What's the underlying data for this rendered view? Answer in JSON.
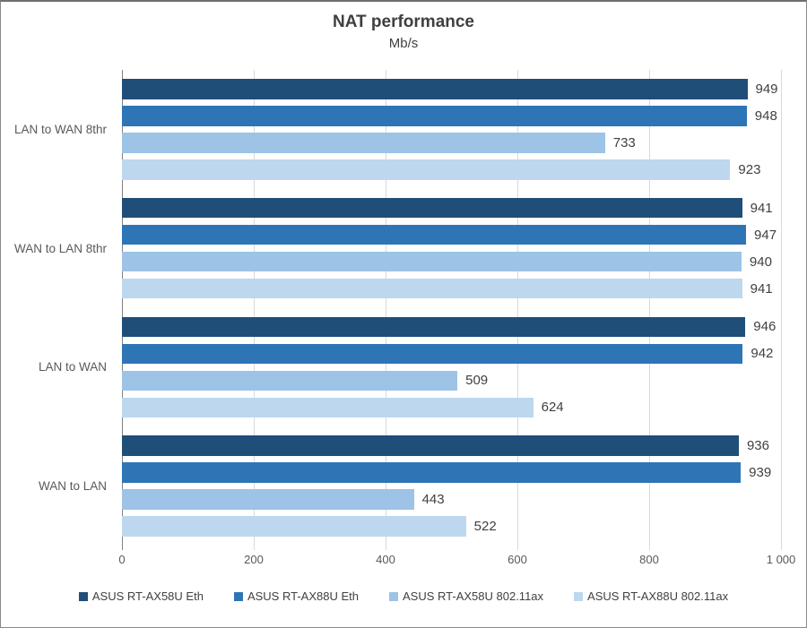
{
  "chart_data": {
    "type": "bar",
    "orientation": "horizontal",
    "title": "NAT performance",
    "subtitle": "Mb/s",
    "categories": [
      "LAN to WAN 8thr",
      "WAN to LAN 8thr",
      "LAN to WAN",
      "WAN to LAN"
    ],
    "series": [
      {
        "name": "ASUS RT-AX58U Eth",
        "color": "#1f4e79",
        "values": [
          949,
          941,
          946,
          936
        ]
      },
      {
        "name": "ASUS RT-AX88U Eth",
        "color": "#2e75b6",
        "values": [
          948,
          947,
          942,
          939
        ]
      },
      {
        "name": "ASUS RT-AX58U 802.11ax",
        "color": "#9dc3e6",
        "values": [
          733,
          940,
          509,
          443
        ]
      },
      {
        "name": "ASUS RT-AX88U 802.11ax",
        "color": "#bdd7ee",
        "values": [
          923,
          941,
          624,
          522
        ]
      }
    ],
    "xlim": [
      0,
      1000
    ],
    "x_ticks": [
      {
        "value": 0,
        "label": "0"
      },
      {
        "value": 200,
        "label": "200"
      },
      {
        "value": 400,
        "label": "400"
      },
      {
        "value": 600,
        "label": "600"
      },
      {
        "value": 800,
        "label": "800"
      },
      {
        "value": 1000,
        "label": "1 000"
      }
    ],
    "grid": "vertical",
    "legend_position": "bottom",
    "colors": {
      "gridline": "#d9d9d9",
      "axis_line": "#808080",
      "title_text": "#3f3f3f",
      "label_text": "#595959",
      "value_text": "#404040"
    }
  }
}
